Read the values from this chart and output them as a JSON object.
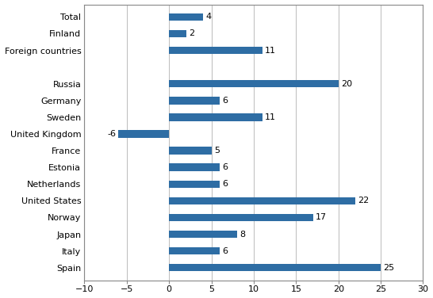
{
  "categories": [
    "Total",
    "Finland",
    "Foreign countries",
    "",
    "Russia",
    "Germany",
    "Sweden",
    "United Kingdom",
    "France",
    "Estonia",
    "Netherlands",
    "United States",
    "Norway",
    "Japan",
    "Italy",
    "Spain"
  ],
  "values": [
    4,
    2,
    11,
    null,
    20,
    6,
    11,
    -6,
    5,
    6,
    6,
    22,
    17,
    8,
    6,
    25
  ],
  "bar_color": "#2E6DA4",
  "xlim": [
    -10,
    30
  ],
  "xticks": [
    -10,
    -5,
    0,
    5,
    10,
    15,
    20,
    25,
    30
  ],
  "bar_height": 0.45,
  "label_fontsize": 8,
  "tick_fontsize": 8,
  "value_label_fontsize": 8,
  "figsize": [
    5.46,
    3.76
  ],
  "dpi": 100,
  "background_color": "#FFFFFF",
  "grid_color": "#BBBBBB"
}
